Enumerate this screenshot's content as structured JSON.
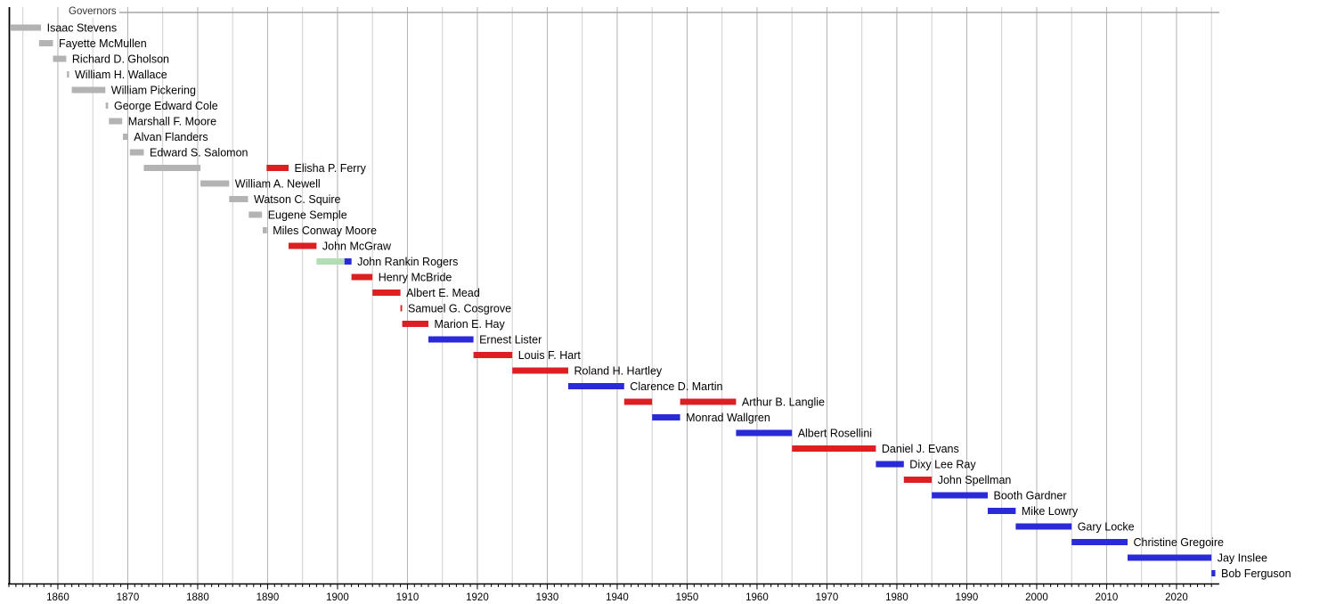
{
  "title": "Governors",
  "colors": {
    "territorial": "#b3b3b3",
    "republican": "#dc1f23",
    "democratic": "#2a2ad8",
    "populist": "#b3ddb3",
    "gridline": "#cfcfcf",
    "gridline_decade": "#b3b3b3",
    "axis": "#000000",
    "top_rule": "#a6a6a6",
    "text": "#000000",
    "background": "#ffffff"
  },
  "chart_data": {
    "type": "bar",
    "variant": "timeline-gantt",
    "title": "Governors",
    "xlabel": "",
    "ylabel": "",
    "x_axis": {
      "start": 1853,
      "end": 2025.6,
      "tick_interval_years": 1,
      "gridline_interval_years": 5,
      "label_interval_years": 10,
      "tick_labels": [
        "1860",
        "1870",
        "1880",
        "1890",
        "1900",
        "1910",
        "1920",
        "1930",
        "1940",
        "1950",
        "1960",
        "1970",
        "1980",
        "1990",
        "2000",
        "2010",
        "2020"
      ]
    },
    "legend": {
      "position": "top-left",
      "label": "Governors"
    },
    "grid": true,
    "governors": [
      {
        "name": "Isaac Stevens",
        "terms": [
          {
            "start": 1853.25,
            "end": 1857.6,
            "group": "territorial"
          }
        ]
      },
      {
        "name": "Fayette McMullen",
        "terms": [
          {
            "start": 1857.3,
            "end": 1859.3,
            "group": "territorial"
          }
        ]
      },
      {
        "name": "Richard D. Gholson",
        "terms": [
          {
            "start": 1859.3,
            "end": 1861.2,
            "group": "territorial"
          }
        ]
      },
      {
        "name": "William H. Wallace",
        "terms": [
          {
            "start": 1861.3,
            "end": 1861.6,
            "group": "territorial"
          }
        ]
      },
      {
        "name": "William Pickering",
        "terms": [
          {
            "start": 1862.0,
            "end": 1866.8,
            "group": "territorial"
          }
        ]
      },
      {
        "name": "George Edward Cole",
        "terms": [
          {
            "start": 1866.85,
            "end": 1867.2,
            "group": "territorial"
          }
        ]
      },
      {
        "name": "Marshall F. Moore",
        "terms": [
          {
            "start": 1867.3,
            "end": 1869.2,
            "group": "territorial"
          }
        ]
      },
      {
        "name": "Alvan Flanders",
        "terms": [
          {
            "start": 1869.3,
            "end": 1870.05,
            "group": "territorial"
          }
        ]
      },
      {
        "name": "Edward S. Salomon",
        "terms": [
          {
            "start": 1870.3,
            "end": 1872.3,
            "group": "territorial"
          }
        ]
      },
      {
        "name": "Elisha P. Ferry",
        "terms": [
          {
            "start": 1872.3,
            "end": 1880.4,
            "group": "territorial"
          },
          {
            "start": 1889.85,
            "end": 1893.0,
            "group": "republican"
          }
        ]
      },
      {
        "name": "William A. Newell",
        "terms": [
          {
            "start": 1880.4,
            "end": 1884.5,
            "group": "territorial"
          }
        ]
      },
      {
        "name": "Watson C. Squire",
        "terms": [
          {
            "start": 1884.5,
            "end": 1887.2,
            "group": "territorial"
          }
        ]
      },
      {
        "name": "Eugene Semple",
        "terms": [
          {
            "start": 1887.3,
            "end": 1889.2,
            "group": "territorial"
          }
        ]
      },
      {
        "name": "Miles Conway Moore",
        "terms": [
          {
            "start": 1889.3,
            "end": 1889.9,
            "group": "territorial"
          }
        ]
      },
      {
        "name": "John McGraw",
        "terms": [
          {
            "start": 1893.0,
            "end": 1897.0,
            "group": "republican"
          }
        ]
      },
      {
        "name": "John Rankin Rogers",
        "terms": [
          {
            "start": 1897.0,
            "end": 1901.0,
            "group": "populist"
          },
          {
            "start": 1901.0,
            "end": 1902.0,
            "group": "democratic"
          }
        ]
      },
      {
        "name": "Henry McBride",
        "terms": [
          {
            "start": 1902.0,
            "end": 1905.0,
            "group": "republican"
          }
        ]
      },
      {
        "name": "Albert E. Mead",
        "terms": [
          {
            "start": 1905.0,
            "end": 1909.0,
            "group": "republican"
          }
        ]
      },
      {
        "name": "Samuel G. Cosgrove",
        "terms": [
          {
            "start": 1909.0,
            "end": 1909.2,
            "group": "republican"
          }
        ]
      },
      {
        "name": "Marion E. Hay",
        "terms": [
          {
            "start": 1909.25,
            "end": 1913.0,
            "group": "republican"
          }
        ]
      },
      {
        "name": "Ernest Lister",
        "terms": [
          {
            "start": 1913.0,
            "end": 1919.45,
            "group": "democratic"
          }
        ]
      },
      {
        "name": "Louis F. Hart",
        "terms": [
          {
            "start": 1919.45,
            "end": 1925.0,
            "group": "republican"
          }
        ]
      },
      {
        "name": "Roland H. Hartley",
        "terms": [
          {
            "start": 1925.0,
            "end": 1933.0,
            "group": "republican"
          }
        ]
      },
      {
        "name": "Clarence D. Martin",
        "terms": [
          {
            "start": 1933.0,
            "end": 1941.0,
            "group": "democratic"
          }
        ]
      },
      {
        "name": "Arthur B. Langlie",
        "terms": [
          {
            "start": 1941.0,
            "end": 1945.0,
            "group": "republican"
          },
          {
            "start": 1949.0,
            "end": 1957.0,
            "group": "republican"
          }
        ]
      },
      {
        "name": "Monrad Wallgren",
        "terms": [
          {
            "start": 1945.0,
            "end": 1949.0,
            "group": "democratic"
          }
        ]
      },
      {
        "name": "Albert Rosellini",
        "terms": [
          {
            "start": 1957.0,
            "end": 1965.0,
            "group": "democratic"
          }
        ]
      },
      {
        "name": "Daniel J. Evans",
        "terms": [
          {
            "start": 1965.0,
            "end": 1977.0,
            "group": "republican"
          }
        ]
      },
      {
        "name": "Dixy Lee Ray",
        "terms": [
          {
            "start": 1977.0,
            "end": 1981.0,
            "group": "democratic"
          }
        ]
      },
      {
        "name": "John Spellman",
        "terms": [
          {
            "start": 1981.0,
            "end": 1985.0,
            "group": "republican"
          }
        ]
      },
      {
        "name": "Booth Gardner",
        "terms": [
          {
            "start": 1985.0,
            "end": 1993.0,
            "group": "democratic"
          }
        ]
      },
      {
        "name": "Mike Lowry",
        "terms": [
          {
            "start": 1993.0,
            "end": 1997.0,
            "group": "democratic"
          }
        ]
      },
      {
        "name": "Gary Locke",
        "terms": [
          {
            "start": 1997.0,
            "end": 2005.0,
            "group": "democratic"
          }
        ]
      },
      {
        "name": "Christine Gregoire",
        "terms": [
          {
            "start": 2005.0,
            "end": 2013.0,
            "group": "democratic"
          }
        ]
      },
      {
        "name": "Jay Inslee",
        "terms": [
          {
            "start": 2013.0,
            "end": 2025.0,
            "group": "democratic"
          }
        ]
      },
      {
        "name": "Bob Ferguson",
        "terms": [
          {
            "start": 2025.0,
            "end": 2025.55,
            "group": "democratic"
          }
        ]
      }
    ]
  }
}
